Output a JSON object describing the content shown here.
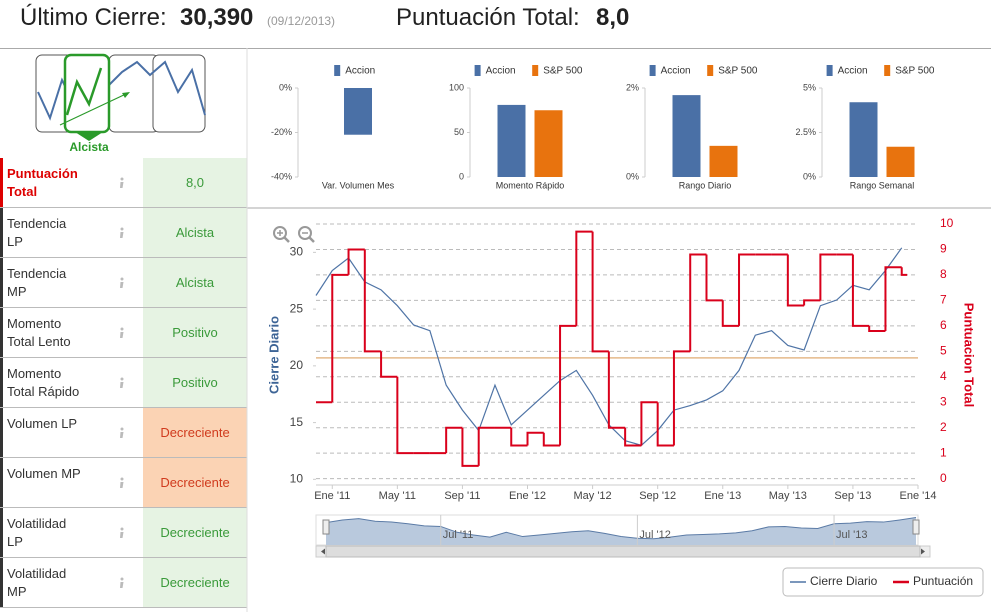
{
  "header": {
    "last_close_label": "Último Cierre:",
    "last_close": "30,390",
    "date": "(09/12/2013)",
    "score_label": "Puntuación Total:",
    "score": "8,0"
  },
  "signal": {
    "label": "Alcista"
  },
  "table": {
    "rows": [
      [
        "Puntuación Total",
        "8,0"
      ],
      [
        "Tendencia LP",
        "Alcista"
      ],
      [
        "Tendencia MP",
        "Alcista"
      ],
      [
        "Momento Total Lento",
        "Positivo"
      ],
      [
        "Momento Total Rápido",
        "Positivo"
      ],
      [
        "Volumen LP",
        "Decreciente"
      ],
      [
        "Volumen MP",
        "Decreciente"
      ],
      [
        "Volatilidad LP",
        "Decreciente"
      ],
      [
        "Volatilidad MP",
        "Decreciente"
      ]
    ]
  },
  "chart_data": [
    {
      "type": "bar",
      "categories": [
        "Var. Volumen Mes"
      ],
      "series": [
        {
          "name": "Accion",
          "color": "#4a70a6",
          "values": [
            -21
          ]
        }
      ],
      "ylim": [
        -40,
        0
      ],
      "yticks": [
        {
          "value": 0,
          "label": "0%"
        },
        {
          "value": -20,
          "label": "-20%"
        },
        {
          "value": -40,
          "label": "-40%"
        }
      ]
    },
    {
      "type": "bar",
      "categories": [
        "Momento Rápido"
      ],
      "series": [
        {
          "name": "Accion",
          "color": "#4a70a6",
          "values": [
            81
          ]
        },
        {
          "name": "S&P 500",
          "color": "#e8730e",
          "values": [
            75
          ]
        }
      ],
      "ylim": [
        0,
        100
      ],
      "yticks": [
        0,
        50,
        100
      ]
    },
    {
      "type": "bar",
      "categories": [
        "Rango Diario"
      ],
      "series": [
        {
          "name": "Accion",
          "color": "#4a70a6",
          "values": [
            1.84
          ]
        },
        {
          "name": "S&P 500",
          "color": "#e8730e",
          "values": [
            0.7
          ]
        }
      ],
      "ylim": [
        0,
        2
      ],
      "yticks": [
        {
          "value": 0,
          "label": "0%"
        },
        {
          "value": 2,
          "label": "2%"
        }
      ]
    },
    {
      "type": "bar",
      "categories": [
        "Rango Semanal"
      ],
      "series": [
        {
          "name": "Accion",
          "color": "#4a70a6",
          "values": [
            4.2
          ]
        },
        {
          "name": "S&P 500",
          "color": "#e8730e",
          "values": [
            1.7
          ]
        }
      ],
      "ylim": [
        0,
        5
      ],
      "yticks": [
        {
          "value": 0,
          "label": "0%"
        },
        {
          "value": 2.5,
          "label": "2.5%"
        },
        {
          "value": 5,
          "label": "5%"
        }
      ]
    },
    {
      "type": "line",
      "y_label": "Cierre Diario",
      "y2_label": "Puntuacion Total",
      "x": [
        "2010-12",
        "2011-01",
        "2011-02",
        "2011-03",
        "2011-04",
        "2011-05",
        "2011-06",
        "2011-07",
        "2011-08",
        "2011-09",
        "2011-10",
        "2011-11",
        "2011-12",
        "2012-01",
        "2012-02",
        "2012-03",
        "2012-04",
        "2012-05",
        "2012-06",
        "2012-07",
        "2012-08",
        "2012-09",
        "2012-10",
        "2012-11",
        "2012-12",
        "2013-01",
        "2013-02",
        "2013-03",
        "2013-04",
        "2013-05",
        "2013-06",
        "2013-07",
        "2013-08",
        "2013-09",
        "2013-10",
        "2013-11",
        "2013-12"
      ],
      "xlim": [
        "2010-12",
        "2014-01"
      ],
      "xticks": [
        {
          "value": "2011-01",
          "label": "Ene '11"
        },
        {
          "value": "2011-05",
          "label": "May '11"
        },
        {
          "value": "2011-09",
          "label": "Sep '11"
        },
        {
          "value": "2012-01",
          "label": "Ene '12"
        },
        {
          "value": "2012-05",
          "label": "May '12"
        },
        {
          "value": "2012-09",
          "label": "Sep '12"
        },
        {
          "value": "2013-01",
          "label": "Ene '13"
        },
        {
          "value": "2013-05",
          "label": "May '13"
        },
        {
          "value": "2013-09",
          "label": "Sep '13"
        },
        {
          "value": "2014-01",
          "label": "Ene '14"
        }
      ],
      "navigator_xticks": [
        {
          "value": "2011-07",
          "label": "Jul '11"
        },
        {
          "value": "2012-07",
          "label": "Jul '12"
        },
        {
          "value": "2013-07",
          "label": "Jul '13"
        }
      ],
      "series": [
        {
          "name": "Cierre Diario",
          "color": "#4f74a6",
          "values": [
            26.2,
            28.4,
            29.5,
            27.4,
            26.7,
            25.3,
            23.6,
            23.1,
            18.3,
            16.1,
            14.3,
            18.3,
            14.8,
            16.1,
            17.4,
            18.7,
            19.6,
            17.4,
            14.8,
            13.4,
            13.0,
            14.3,
            16.1,
            16.5,
            17.0,
            17.8,
            19.6,
            22.7,
            23.1,
            21.8,
            21.4,
            25.3,
            25.8,
            27.1,
            26.7,
            28.4,
            30.4
          ]
        },
        {
          "name": "Puntuación",
          "color": "#d9001b",
          "axis": "y2",
          "step": true,
          "values": [
            3,
            8,
            9,
            5,
            4,
            1,
            1,
            1,
            2,
            0.5,
            2,
            2,
            1.3,
            1.8,
            1.3,
            6,
            9.7,
            5,
            2,
            1.3,
            3,
            1.3,
            5,
            8.8,
            7,
            6,
            8.8,
            8.8,
            8.8,
            6.8,
            7,
            8.8,
            8.8,
            6,
            5.8,
            8.3,
            8
          ]
        }
      ],
      "ylim": [
        9.5,
        32.5
      ],
      "yticks": [
        10,
        15,
        20,
        25,
        30
      ],
      "y2lim": [
        -0.25,
        10
      ],
      "y2ticks": [
        0,
        1,
        2,
        3,
        4,
        5,
        6,
        7,
        8,
        9,
        10
      ],
      "grid": true,
      "reference_line": {
        "value": 20.7,
        "color": "#e5b98a"
      }
    }
  ]
}
